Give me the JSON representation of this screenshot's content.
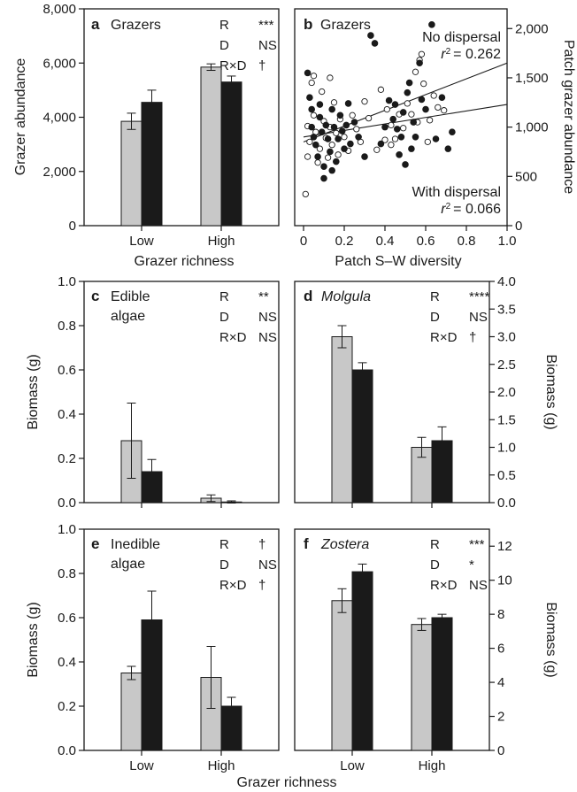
{
  "figure": {
    "bottom_xlabel": "Grazer richness"
  },
  "colors": {
    "light_bar": "#c8c8c8",
    "dark_bar": "#1a1a1a",
    "axis": "#1a1a1a"
  },
  "chart_data": [
    {
      "id": "a",
      "type": "bar",
      "letter": "a",
      "title": "Grazers",
      "categories": [
        "Low",
        "High"
      ],
      "xlabel": "Grazer richness",
      "ylabel": "Grazer abundance",
      "ylim": [
        0,
        8000
      ],
      "yticks": [
        "0",
        "2,000",
        "4,000",
        "6,000",
        "8,000"
      ],
      "series": [
        {
          "color": "#c8c8c8",
          "values": [
            3850,
            5850
          ],
          "errors": [
            300,
            120
          ]
        },
        {
          "color": "#1a1a1a",
          "values": [
            4550,
            5300
          ],
          "errors": [
            450,
            220
          ]
        }
      ],
      "stats": [
        {
          "term": "R",
          "sig": "***"
        },
        {
          "term": "D",
          "sig": "NS"
        },
        {
          "term": "R×D",
          "sig": "†"
        }
      ]
    },
    {
      "id": "b",
      "type": "scatter",
      "letter": "b",
      "title": "Grazers",
      "xlabel": "Patch S–W diversity",
      "ylabel": "Patch grazer abundance",
      "xlim": [
        0,
        1
      ],
      "ylim": [
        0,
        2200
      ],
      "xticks": [
        "0",
        "0.2",
        "0.4",
        "0.6",
        "0.8",
        "1.0"
      ],
      "yticks": [
        "0",
        "500",
        "1,000",
        "1,500",
        "2,000"
      ],
      "annotations": [
        {
          "line1": "No dispersal",
          "r2_value": "= 0.262"
        },
        {
          "line1": "With dispersal",
          "r2_value": "= 0.066"
        }
      ],
      "r2_label": "r",
      "fit_lines": [
        {
          "name": "No dispersal",
          "x": [
            0,
            1
          ],
          "y": [
            850,
            1650
          ]
        },
        {
          "name": "With dispersal",
          "x": [
            0,
            1
          ],
          "y": [
            900,
            1230
          ]
        }
      ],
      "filled_points": [
        [
          0.02,
          1550
        ],
        [
          0.03,
          1300
        ],
        [
          0.04,
          1180
        ],
        [
          0.04,
          1000
        ],
        [
          0.05,
          900
        ],
        [
          0.06,
          820
        ],
        [
          0.07,
          700
        ],
        [
          0.08,
          1100
        ],
        [
          0.09,
          950
        ],
        [
          0.1,
          600
        ],
        [
          0.1,
          480
        ],
        [
          0.11,
          1020
        ],
        [
          0.12,
          880
        ],
        [
          0.13,
          750
        ],
        [
          0.14,
          1180
        ],
        [
          0.15,
          1000
        ],
        [
          0.16,
          650
        ],
        [
          0.17,
          880
        ],
        [
          0.18,
          1120
        ],
        [
          0.19,
          960
        ],
        [
          0.2,
          780
        ],
        [
          0.21,
          1020
        ],
        [
          0.23,
          830
        ],
        [
          0.25,
          1050
        ],
        [
          0.27,
          900
        ],
        [
          0.3,
          700
        ],
        [
          0.33,
          1930
        ],
        [
          0.35,
          1850
        ],
        [
          0.38,
          830
        ],
        [
          0.4,
          1000
        ],
        [
          0.42,
          1270
        ],
        [
          0.44,
          1080
        ],
        [
          0.45,
          1230
        ],
        [
          0.46,
          980
        ],
        [
          0.48,
          900
        ],
        [
          0.49,
          1150
        ],
        [
          0.5,
          620
        ],
        [
          0.51,
          1350
        ],
        [
          0.52,
          1450
        ],
        [
          0.53,
          780
        ],
        [
          0.54,
          1050
        ],
        [
          0.55,
          900
        ],
        [
          0.57,
          1650
        ],
        [
          0.58,
          1280
        ],
        [
          0.6,
          1180
        ],
        [
          0.63,
          2040
        ],
        [
          0.65,
          880
        ],
        [
          0.68,
          1300
        ],
        [
          0.71,
          780
        ],
        [
          0.73,
          950
        ],
        [
          0.47,
          720
        ],
        [
          0.08,
          1230
        ],
        [
          0.14,
          560
        ],
        [
          0.22,
          1240
        ]
      ],
      "open_points": [
        [
          0.01,
          320
        ],
        [
          0.02,
          700
        ],
        [
          0.03,
          850
        ],
        [
          0.04,
          1450
        ],
        [
          0.05,
          1120
        ],
        [
          0.06,
          950
        ],
        [
          0.07,
          640
        ],
        [
          0.08,
          780
        ],
        [
          0.09,
          1360
        ],
        [
          0.1,
          1060
        ],
        [
          0.11,
          890
        ],
        [
          0.12,
          690
        ],
        [
          0.13,
          1000
        ],
        [
          0.14,
          820
        ],
        [
          0.15,
          1250
        ],
        [
          0.16,
          940
        ],
        [
          0.17,
          720
        ],
        [
          0.18,
          1080
        ],
        [
          0.2,
          900
        ],
        [
          0.22,
          760
        ],
        [
          0.24,
          1120
        ],
        [
          0.26,
          980
        ],
        [
          0.28,
          850
        ],
        [
          0.32,
          1090
        ],
        [
          0.36,
          770
        ],
        [
          0.38,
          1380
        ],
        [
          0.41,
          1180
        ],
        [
          0.43,
          1020
        ],
        [
          0.45,
          880
        ],
        [
          0.47,
          1130
        ],
        [
          0.49,
          990
        ],
        [
          0.51,
          1240
        ],
        [
          0.53,
          1130
        ],
        [
          0.55,
          1560
        ],
        [
          0.56,
          1050
        ],
        [
          0.57,
          1680
        ],
        [
          0.59,
          1440
        ],
        [
          0.61,
          850
        ],
        [
          0.62,
          1070
        ],
        [
          0.64,
          1320
        ],
        [
          0.66,
          1200
        ],
        [
          0.69,
          1170
        ],
        [
          0.43,
          820
        ],
        [
          0.05,
          1520
        ],
        [
          0.13,
          1500
        ],
        [
          0.3,
          1260
        ],
        [
          0.4,
          870
        ],
        [
          0.58,
          1740
        ],
        [
          0.02,
          1010
        ]
      ]
    },
    {
      "id": "c",
      "type": "bar",
      "letter": "c",
      "title": "Edible",
      "title2": "algae",
      "categories": [
        "Low",
        "High"
      ],
      "ylabel": "Biomass (g)",
      "ylim": [
        0,
        1
      ],
      "yticks": [
        "0.0",
        "0.2",
        "0.4",
        "0.6",
        "0.8",
        "1.0"
      ],
      "series": [
        {
          "color": "#c8c8c8",
          "values": [
            0.28,
            0.02
          ],
          "errors": [
            0.17,
            0.015
          ]
        },
        {
          "color": "#1a1a1a",
          "values": [
            0.14,
            0.003
          ],
          "errors": [
            0.055,
            0.005
          ]
        }
      ],
      "stats": [
        {
          "term": "R",
          "sig": "**"
        },
        {
          "term": "D",
          "sig": "NS"
        },
        {
          "term": "R×D",
          "sig": "NS"
        }
      ]
    },
    {
      "id": "d",
      "type": "bar",
      "letter": "d",
      "title": "Molgula",
      "title_italic": true,
      "categories": [
        "Low",
        "High"
      ],
      "ylabel": "Biomass (g)",
      "ylim": [
        0,
        4
      ],
      "yticks": [
        "0.0",
        "0.5",
        "1.0",
        "1.5",
        "2.0",
        "2.5",
        "3.0",
        "3.5",
        "4.0"
      ],
      "series": [
        {
          "color": "#c8c8c8",
          "values": [
            3.0,
            1.0
          ],
          "errors": [
            0.2,
            0.18
          ]
        },
        {
          "color": "#1a1a1a",
          "values": [
            2.4,
            1.12
          ],
          "errors": [
            0.13,
            0.25
          ]
        }
      ],
      "stats": [
        {
          "term": "R",
          "sig": "****"
        },
        {
          "term": "D",
          "sig": "NS"
        },
        {
          "term": "R×D",
          "sig": "†"
        }
      ]
    },
    {
      "id": "e",
      "type": "bar",
      "letter": "e",
      "title": "Inedible",
      "title2": "algae",
      "categories": [
        "Low",
        "High"
      ],
      "xlabel": "",
      "ylabel": "Biomass (g)",
      "ylim": [
        0,
        1
      ],
      "yticks": [
        "0.0",
        "0.2",
        "0.4",
        "0.6",
        "0.8",
        "1.0"
      ],
      "series": [
        {
          "color": "#c8c8c8",
          "values": [
            0.35,
            0.33
          ],
          "errors": [
            0.03,
            0.14
          ]
        },
        {
          "color": "#1a1a1a",
          "values": [
            0.59,
            0.2
          ],
          "errors": [
            0.13,
            0.04
          ]
        }
      ],
      "stats": [
        {
          "term": "R",
          "sig": "†"
        },
        {
          "term": "D",
          "sig": "NS"
        },
        {
          "term": "R×D",
          "sig": "†"
        }
      ]
    },
    {
      "id": "f",
      "type": "bar",
      "letter": "f",
      "title": "Zostera",
      "title_italic": true,
      "categories": [
        "Low",
        "High"
      ],
      "ylabel": "Biomass (g)",
      "ylim": [
        0,
        13
      ],
      "yticks": [
        "0",
        "2",
        "4",
        "6",
        "8",
        "10",
        "12"
      ],
      "series": [
        {
          "color": "#c8c8c8",
          "values": [
            8.8,
            7.4
          ],
          "errors": [
            0.7,
            0.35
          ]
        },
        {
          "color": "#1a1a1a",
          "values": [
            10.5,
            7.8
          ],
          "errors": [
            0.45,
            0.2
          ]
        }
      ],
      "stats": [
        {
          "term": "R",
          "sig": "***"
        },
        {
          "term": "D",
          "sig": "*"
        },
        {
          "term": "R×D",
          "sig": "NS"
        }
      ]
    }
  ]
}
